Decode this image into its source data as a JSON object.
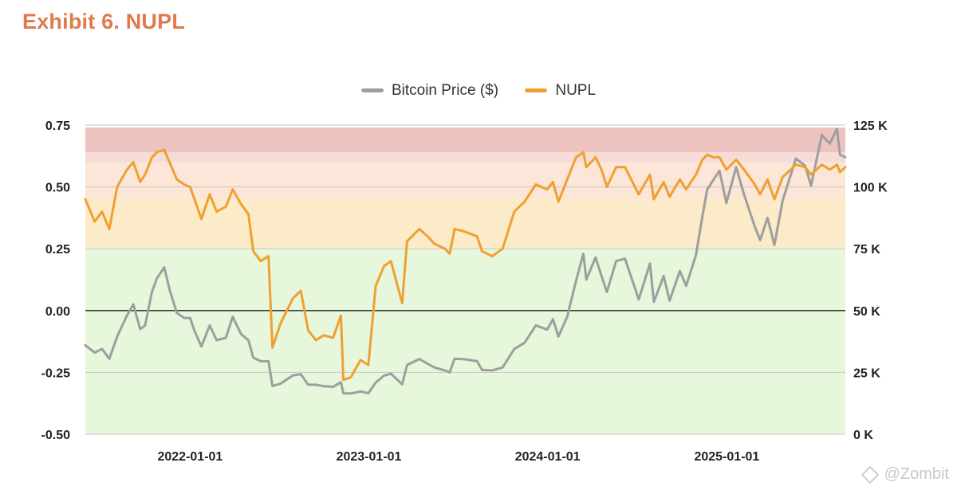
{
  "title": "Exhibit 6. NUPL",
  "watermark": "@Zombit",
  "chart_data": {
    "type": "line",
    "legend_position": "top-center",
    "series": [
      {
        "name": "Bitcoin Price ($)",
        "axis": "right",
        "color": "#9e9e9e",
        "points": [
          [
            "2021-06-01",
            36000
          ],
          [
            "2021-06-20",
            33000
          ],
          [
            "2021-07-05",
            34500
          ],
          [
            "2021-07-20",
            30500
          ],
          [
            "2021-08-05",
            39500
          ],
          [
            "2021-08-25",
            48000
          ],
          [
            "2021-09-07",
            52500
          ],
          [
            "2021-09-21",
            42500
          ],
          [
            "2021-10-01",
            44000
          ],
          [
            "2021-10-15",
            57500
          ],
          [
            "2021-10-25",
            63000
          ],
          [
            "2021-11-09",
            67500
          ],
          [
            "2021-11-20",
            58500
          ],
          [
            "2021-12-05",
            49000
          ],
          [
            "2021-12-20",
            47000
          ],
          [
            "2022-01-01",
            47000
          ],
          [
            "2022-01-10",
            41800
          ],
          [
            "2022-01-24",
            35500
          ],
          [
            "2022-02-10",
            44000
          ],
          [
            "2022-02-24",
            38000
          ],
          [
            "2022-03-15",
            39000
          ],
          [
            "2022-03-29",
            47500
          ],
          [
            "2022-04-15",
            40500
          ],
          [
            "2022-04-30",
            38000
          ],
          [
            "2022-05-10",
            31000
          ],
          [
            "2022-05-25",
            29500
          ],
          [
            "2022-06-10",
            29500
          ],
          [
            "2022-06-18",
            19500
          ],
          [
            "2022-07-05",
            20500
          ],
          [
            "2022-07-30",
            23800
          ],
          [
            "2022-08-15",
            24300
          ],
          [
            "2022-08-30",
            20000
          ],
          [
            "2022-09-15",
            20000
          ],
          [
            "2022-10-01",
            19400
          ],
          [
            "2022-10-20",
            19200
          ],
          [
            "2022-11-05",
            21000
          ],
          [
            "2022-11-10",
            16500
          ],
          [
            "2022-11-25",
            16500
          ],
          [
            "2022-12-15",
            17300
          ],
          [
            "2022-12-31",
            16600
          ],
          [
            "2023-01-15",
            20900
          ],
          [
            "2023-02-01",
            23700
          ],
          [
            "2023-02-15",
            24500
          ],
          [
            "2023-03-10",
            20200
          ],
          [
            "2023-03-20",
            28000
          ],
          [
            "2023-04-14",
            30400
          ],
          [
            "2023-05-01",
            28500
          ],
          [
            "2023-05-15",
            27000
          ],
          [
            "2023-06-05",
            25800
          ],
          [
            "2023-06-15",
            25000
          ],
          [
            "2023-06-25",
            30500
          ],
          [
            "2023-07-15",
            30300
          ],
          [
            "2023-08-10",
            29500
          ],
          [
            "2023-08-20",
            26000
          ],
          [
            "2023-09-10",
            25800
          ],
          [
            "2023-10-01",
            27000
          ],
          [
            "2023-10-25",
            34500
          ],
          [
            "2023-11-15",
            37000
          ],
          [
            "2023-12-08",
            44000
          ],
          [
            "2023-12-31",
            42300
          ],
          [
            "2024-01-12",
            46500
          ],
          [
            "2024-01-23",
            39500
          ],
          [
            "2024-02-10",
            47500
          ],
          [
            "2024-02-28",
            62000
          ],
          [
            "2024-03-14",
            73000
          ],
          [
            "2024-03-20",
            62500
          ],
          [
            "2024-04-08",
            71500
          ],
          [
            "2024-04-20",
            64000
          ],
          [
            "2024-05-01",
            57500
          ],
          [
            "2024-05-20",
            70000
          ],
          [
            "2024-06-07",
            71000
          ],
          [
            "2024-07-05",
            54500
          ],
          [
            "2024-07-28",
            69000
          ],
          [
            "2024-08-05",
            53500
          ],
          [
            "2024-08-25",
            64000
          ],
          [
            "2024-09-06",
            54000
          ],
          [
            "2024-09-27",
            66000
          ],
          [
            "2024-10-10",
            60000
          ],
          [
            "2024-10-30",
            72500
          ],
          [
            "2024-11-12",
            88000
          ],
          [
            "2024-11-22",
            99000
          ],
          [
            "2024-12-05",
            103000
          ],
          [
            "2024-12-17",
            106500
          ],
          [
            "2024-12-31",
            93500
          ],
          [
            "2025-01-20",
            108000
          ],
          [
            "2025-02-05",
            97000
          ],
          [
            "2025-02-27",
            84000
          ],
          [
            "2025-03-10",
            78500
          ],
          [
            "2025-03-25",
            87500
          ],
          [
            "2025-04-08",
            76500
          ],
          [
            "2025-04-25",
            94500
          ],
          [
            "2025-05-22",
            111500
          ],
          [
            "2025-06-10",
            108500
          ],
          [
            "2025-06-22",
            100500
          ],
          [
            "2025-07-14",
            121000
          ],
          [
            "2025-07-30",
            117500
          ],
          [
            "2025-08-14",
            123500
          ],
          [
            "2025-08-20",
            113000
          ],
          [
            "2025-08-31",
            112000
          ]
        ]
      },
      {
        "name": "NUPL",
        "axis": "left",
        "color": "#f0a030",
        "points": [
          [
            "2021-06-01",
            0.45
          ],
          [
            "2021-06-20",
            0.36
          ],
          [
            "2021-07-05",
            0.4
          ],
          [
            "2021-07-20",
            0.33
          ],
          [
            "2021-08-05",
            0.5
          ],
          [
            "2021-08-25",
            0.57
          ],
          [
            "2021-09-07",
            0.6
          ],
          [
            "2021-09-21",
            0.52
          ],
          [
            "2021-10-01",
            0.55
          ],
          [
            "2021-10-15",
            0.62
          ],
          [
            "2021-10-25",
            0.64
          ],
          [
            "2021-11-09",
            0.65
          ],
          [
            "2021-11-20",
            0.6
          ],
          [
            "2021-12-05",
            0.53
          ],
          [
            "2021-12-20",
            0.51
          ],
          [
            "2022-01-01",
            0.5
          ],
          [
            "2022-01-10",
            0.45
          ],
          [
            "2022-01-24",
            0.37
          ],
          [
            "2022-02-10",
            0.47
          ],
          [
            "2022-02-24",
            0.4
          ],
          [
            "2022-03-15",
            0.42
          ],
          [
            "2022-03-29",
            0.49
          ],
          [
            "2022-04-15",
            0.43
          ],
          [
            "2022-04-30",
            0.39
          ],
          [
            "2022-05-10",
            0.24
          ],
          [
            "2022-05-25",
            0.2
          ],
          [
            "2022-06-10",
            0.22
          ],
          [
            "2022-06-18",
            -0.15
          ],
          [
            "2022-07-05",
            -0.05
          ],
          [
            "2022-07-30",
            0.05
          ],
          [
            "2022-08-15",
            0.08
          ],
          [
            "2022-08-30",
            -0.08
          ],
          [
            "2022-09-15",
            -0.12
          ],
          [
            "2022-10-01",
            -0.1
          ],
          [
            "2022-10-20",
            -0.11
          ],
          [
            "2022-11-05",
            -0.02
          ],
          [
            "2022-11-10",
            -0.28
          ],
          [
            "2022-11-25",
            -0.27
          ],
          [
            "2022-12-15",
            -0.2
          ],
          [
            "2022-12-31",
            -0.22
          ],
          [
            "2023-01-15",
            0.1
          ],
          [
            "2023-02-01",
            0.18
          ],
          [
            "2023-02-15",
            0.2
          ],
          [
            "2023-03-10",
            0.03
          ],
          [
            "2023-03-20",
            0.28
          ],
          [
            "2023-04-14",
            0.33
          ],
          [
            "2023-05-01",
            0.3
          ],
          [
            "2023-05-15",
            0.27
          ],
          [
            "2023-06-05",
            0.25
          ],
          [
            "2023-06-15",
            0.23
          ],
          [
            "2023-06-25",
            0.33
          ],
          [
            "2023-07-15",
            0.32
          ],
          [
            "2023-08-10",
            0.3
          ],
          [
            "2023-08-20",
            0.24
          ],
          [
            "2023-09-10",
            0.22
          ],
          [
            "2023-10-01",
            0.25
          ],
          [
            "2023-10-25",
            0.4
          ],
          [
            "2023-11-15",
            0.44
          ],
          [
            "2023-12-08",
            0.51
          ],
          [
            "2023-12-31",
            0.49
          ],
          [
            "2024-01-12",
            0.52
          ],
          [
            "2024-01-23",
            0.44
          ],
          [
            "2024-02-10",
            0.53
          ],
          [
            "2024-02-28",
            0.62
          ],
          [
            "2024-03-14",
            0.64
          ],
          [
            "2024-03-20",
            0.58
          ],
          [
            "2024-04-08",
            0.62
          ],
          [
            "2024-04-20",
            0.57
          ],
          [
            "2024-05-01",
            0.5
          ],
          [
            "2024-05-20",
            0.58
          ],
          [
            "2024-06-07",
            0.58
          ],
          [
            "2024-07-05",
            0.47
          ],
          [
            "2024-07-28",
            0.55
          ],
          [
            "2024-08-05",
            0.45
          ],
          [
            "2024-08-25",
            0.52
          ],
          [
            "2024-09-06",
            0.46
          ],
          [
            "2024-09-27",
            0.53
          ],
          [
            "2024-10-10",
            0.49
          ],
          [
            "2024-10-30",
            0.55
          ],
          [
            "2024-11-12",
            0.61
          ],
          [
            "2024-11-22",
            0.63
          ],
          [
            "2024-12-05",
            0.62
          ],
          [
            "2024-12-17",
            0.62
          ],
          [
            "2024-12-31",
            0.57
          ],
          [
            "2025-01-20",
            0.61
          ],
          [
            "2025-02-05",
            0.57
          ],
          [
            "2025-02-27",
            0.51
          ],
          [
            "2025-03-10",
            0.47
          ],
          [
            "2025-03-25",
            0.53
          ],
          [
            "2025-04-08",
            0.45
          ],
          [
            "2025-04-25",
            0.54
          ],
          [
            "2025-05-22",
            0.59
          ],
          [
            "2025-06-10",
            0.58
          ],
          [
            "2025-06-22",
            0.55
          ],
          [
            "2025-07-14",
            0.59
          ],
          [
            "2025-07-30",
            0.57
          ],
          [
            "2025-08-14",
            0.59
          ],
          [
            "2025-08-20",
            0.56
          ],
          [
            "2025-08-31",
            0.58
          ]
        ]
      }
    ],
    "x_ticks": [
      "2022-01-01",
      "2023-01-01",
      "2024-01-01",
      "2025-01-01"
    ],
    "x_range": [
      "2021-06-01",
      "2025-08-31"
    ],
    "y_left": {
      "min": -0.5,
      "max": 0.75,
      "ticks": [
        0.75,
        0.5,
        0.25,
        0,
        -0.25,
        -0.5
      ],
      "tick_labels": [
        "0.75",
        "0.50",
        "0.25",
        "0.00",
        "-0.25",
        "-0.50"
      ]
    },
    "y_right": {
      "min": 0,
      "max": 125000,
      "ticks": [
        125000,
        100000,
        75000,
        50000,
        25000,
        0
      ],
      "tick_labels": [
        "125 K",
        "100 K",
        "75 K",
        "50 K",
        "25 K",
        "0 K"
      ]
    },
    "bands": [
      {
        "from": -0.5,
        "to": 0.25,
        "color": "#e6f7dc"
      },
      {
        "from": 0.25,
        "to": 0.45,
        "color": "#fbebc8"
      },
      {
        "from": 0.45,
        "to": 0.6,
        "color": "#fbe6d8"
      },
      {
        "from": 0.6,
        "to": 0.64,
        "color": "#f6dcd7"
      },
      {
        "from": 0.64,
        "to": 0.74,
        "color": "#edc3c0"
      }
    ],
    "gridlines": true,
    "zero_line": true
  }
}
